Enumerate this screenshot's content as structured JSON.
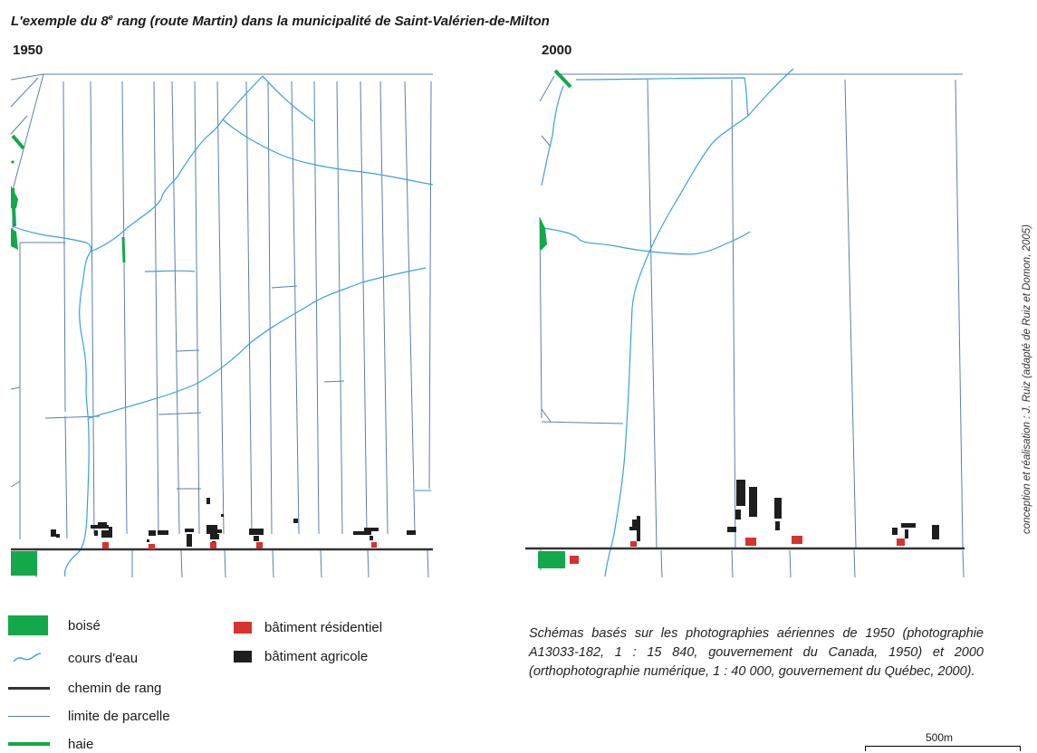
{
  "title_prefix": "L'exemple du 8",
  "title_sup": "e",
  "title_suffix": " rang (route Martin) dans la municipalité de Saint-Valérien-de-Milton",
  "panels": [
    {
      "year": "1950"
    },
    {
      "year": "2000"
    }
  ],
  "credit": "conception et réalisation : J. Ruiz (adapté de Ruiz et Domon, 2005)",
  "legend": {
    "boise": {
      "label": "boisé",
      "color": "#13a84a"
    },
    "cours_eau": {
      "label": "cours d'eau",
      "color": "#3aa0dc"
    },
    "chemin": {
      "label": "chemin de rang",
      "color": "#333333"
    },
    "limite": {
      "label": "limite de parcelle",
      "color": "#5b7fa8"
    },
    "haie": {
      "label": "haie",
      "color": "#13a84a"
    },
    "residentiel": {
      "label": "bâtiment résidentiel",
      "color": "#d6322e"
    },
    "agricole": {
      "label": "bâtiment agricole",
      "color": "#1e1e1e"
    }
  },
  "note": "Schémas basés sur les photographies aériennes de 1950 (photographie A13033-182, 1 : 15 840, gouvernement du Canada, 1950) et 2000 (orthophotographie numérique, 1 : 40 000, gouvernement du Québec, 2000).",
  "scale": {
    "label": "500m"
  }
}
